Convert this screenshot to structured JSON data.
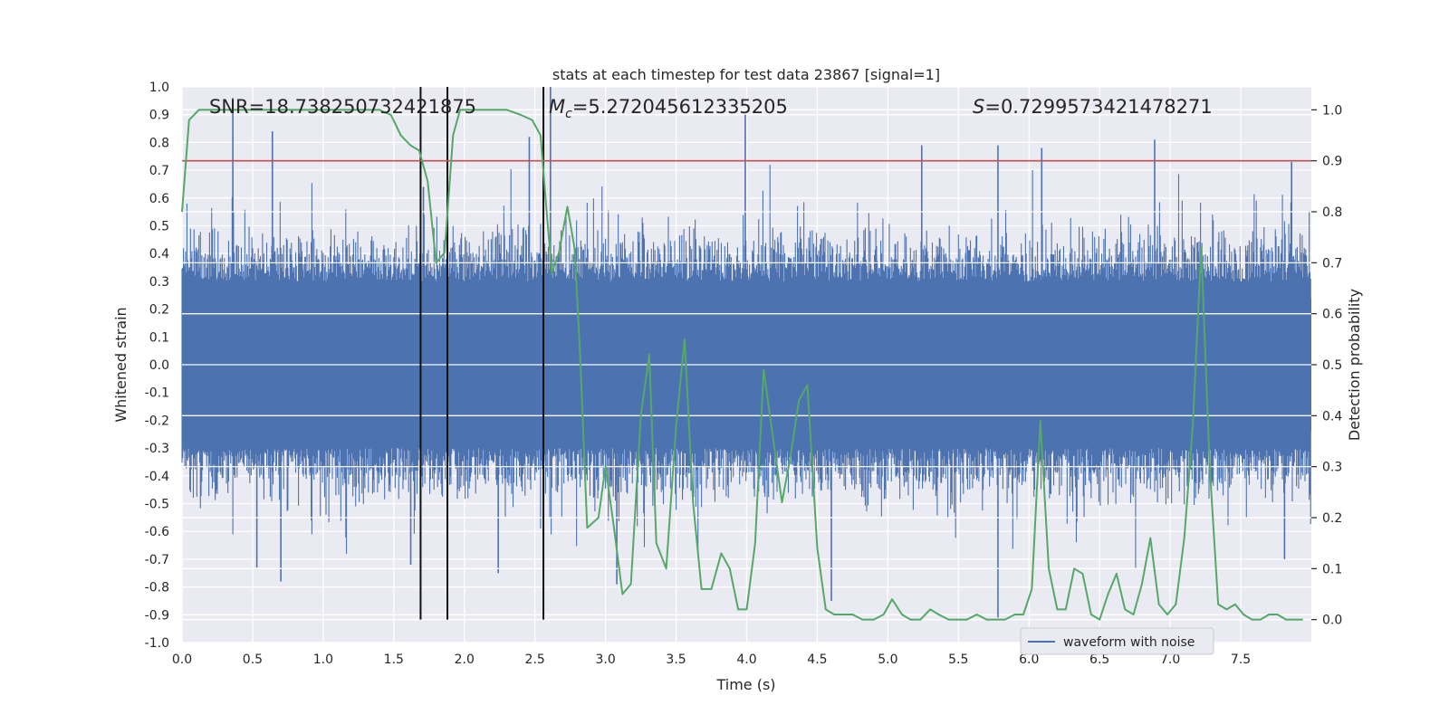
{
  "chart_data": {
    "type": "line",
    "title": "stats at each timestep for test data 23867 [signal=1]",
    "xlabel": "Time (s)",
    "ylabel": "Whitened strain",
    "y2label": "Detection probability",
    "xlim": [
      0.0,
      8.0
    ],
    "ylim": [
      -1.0,
      1.0
    ],
    "y2lim": [
      -0.045,
      1.045
    ],
    "x_ticks": [
      "0.0",
      "0.5",
      "1.0",
      "1.5",
      "2.0",
      "2.5",
      "3.0",
      "3.5",
      "4.0",
      "4.5",
      "5.0",
      "5.5",
      "6.0",
      "6.5",
      "7.0",
      "7.5"
    ],
    "y_ticks": [
      "-1.0",
      "-0.9",
      "-0.8",
      "-0.7",
      "-0.6",
      "-0.5",
      "-0.4",
      "-0.3",
      "-0.2",
      "-0.1",
      "0.0",
      "0.1",
      "0.2",
      "0.3",
      "0.4",
      "0.5",
      "0.6",
      "0.7",
      "0.8",
      "0.9",
      "1.0"
    ],
    "y2_ticks": [
      "0.0",
      "0.1",
      "0.2",
      "0.3",
      "0.4",
      "0.5",
      "0.6",
      "0.7",
      "0.8",
      "0.9",
      "1.0"
    ],
    "grid": true,
    "legend": {
      "position": "lower-right",
      "entries": [
        "waveform with noise"
      ]
    },
    "annotations": {
      "snr": "SNR=18.738250732421875",
      "mc_symbol": "M",
      "mc_sub": "c",
      "mc_value": "=5.272045612335205",
      "s_symbol": "S",
      "s_value": "=0.7299573421478271"
    },
    "threshold_line": {
      "y2": 0.9,
      "color": "#c44e52"
    },
    "vertical_markers_s": [
      1.69,
      1.88,
      2.56
    ],
    "waveform": {
      "name": "waveform with noise",
      "color": "#4c72b0",
      "duration_s": 8.0,
      "core_amplitude": 0.3,
      "peaks": [
        {
          "x": 0.36,
          "y": 0.96
        },
        {
          "x": 0.64,
          "y": 0.84
        },
        {
          "x": 1.71,
          "y": 0.64
        },
        {
          "x": 2.46,
          "y": 0.82
        },
        {
          "x": 2.61,
          "y": 1.0
        },
        {
          "x": 3.99,
          "y": 0.9
        },
        {
          "x": 5.24,
          "y": 0.79
        },
        {
          "x": 5.78,
          "y": 0.79
        },
        {
          "x": 6.09,
          "y": 0.78
        },
        {
          "x": 6.89,
          "y": 0.81
        },
        {
          "x": 7.86,
          "y": 0.73
        },
        {
          "x": 0.53,
          "y": -0.73
        },
        {
          "x": 0.7,
          "y": -0.78
        },
        {
          "x": 1.62,
          "y": -0.72
        },
        {
          "x": 2.24,
          "y": -0.75
        },
        {
          "x": 3.08,
          "y": -0.79
        },
        {
          "x": 4.6,
          "y": -0.85
        },
        {
          "x": 5.78,
          "y": -0.91
        },
        {
          "x": 7.81,
          "y": -0.7
        }
      ]
    },
    "detection_probability": {
      "color": "#55a868",
      "x": [
        0.0,
        0.05,
        0.12,
        0.2,
        0.4,
        0.6,
        0.8,
        1.0,
        1.2,
        1.4,
        1.48,
        1.55,
        1.62,
        1.68,
        1.74,
        1.8,
        1.86,
        1.92,
        1.97,
        2.03,
        2.1,
        2.2,
        2.3,
        2.4,
        2.48,
        2.54,
        2.58,
        2.62,
        2.67,
        2.73,
        2.78,
        2.82,
        2.87,
        2.95,
        3.0,
        3.06,
        3.12,
        3.18,
        3.25,
        3.31,
        3.36,
        3.43,
        3.5,
        3.56,
        3.62,
        3.68,
        3.75,
        3.82,
        3.88,
        3.94,
        4.0,
        4.06,
        4.12,
        4.18,
        4.25,
        4.31,
        4.37,
        4.43,
        4.5,
        4.56,
        4.62,
        4.68,
        4.75,
        4.82,
        4.9,
        4.97,
        5.03,
        5.1,
        5.16,
        5.23,
        5.3,
        5.36,
        5.43,
        5.5,
        5.56,
        5.63,
        5.7,
        5.76,
        5.83,
        5.9,
        5.96,
        6.02,
        6.08,
        6.14,
        6.2,
        6.26,
        6.32,
        6.38,
        6.44,
        6.5,
        6.56,
        6.62,
        6.68,
        6.74,
        6.8,
        6.86,
        6.92,
        6.98,
        7.04,
        7.1,
        7.16,
        7.22,
        7.28,
        7.34,
        7.4,
        7.46,
        7.52,
        7.58,
        7.64,
        7.7,
        7.76,
        7.82,
        7.88,
        7.94
      ],
      "y": [
        0.8,
        0.98,
        1.0,
        1.0,
        1.0,
        1.0,
        1.0,
        1.0,
        1.0,
        1.0,
        0.99,
        0.95,
        0.93,
        0.92,
        0.86,
        0.7,
        0.72,
        0.95,
        1.0,
        1.0,
        1.0,
        1.0,
        1.0,
        0.99,
        0.98,
        0.95,
        0.81,
        0.68,
        0.72,
        0.81,
        0.73,
        0.52,
        0.18,
        0.2,
        0.3,
        0.18,
        0.05,
        0.07,
        0.4,
        0.52,
        0.15,
        0.1,
        0.38,
        0.55,
        0.23,
        0.06,
        0.06,
        0.13,
        0.1,
        0.02,
        0.02,
        0.15,
        0.49,
        0.37,
        0.23,
        0.32,
        0.43,
        0.46,
        0.14,
        0.02,
        0.01,
        0.01,
        0.01,
        0.0,
        0.0,
        0.01,
        0.04,
        0.01,
        0.0,
        0.0,
        0.02,
        0.01,
        0.0,
        0.0,
        0.0,
        0.01,
        0.0,
        0.0,
        0.0,
        0.01,
        0.01,
        0.06,
        0.39,
        0.1,
        0.02,
        0.02,
        0.1,
        0.09,
        0.01,
        0.0,
        0.05,
        0.09,
        0.02,
        0.01,
        0.07,
        0.16,
        0.03,
        0.01,
        0.03,
        0.16,
        0.38,
        0.73,
        0.3,
        0.03,
        0.02,
        0.03,
        0.01,
        0.0,
        0.0,
        0.01,
        0.01,
        0.0,
        0.0,
        0.0
      ]
    }
  }
}
